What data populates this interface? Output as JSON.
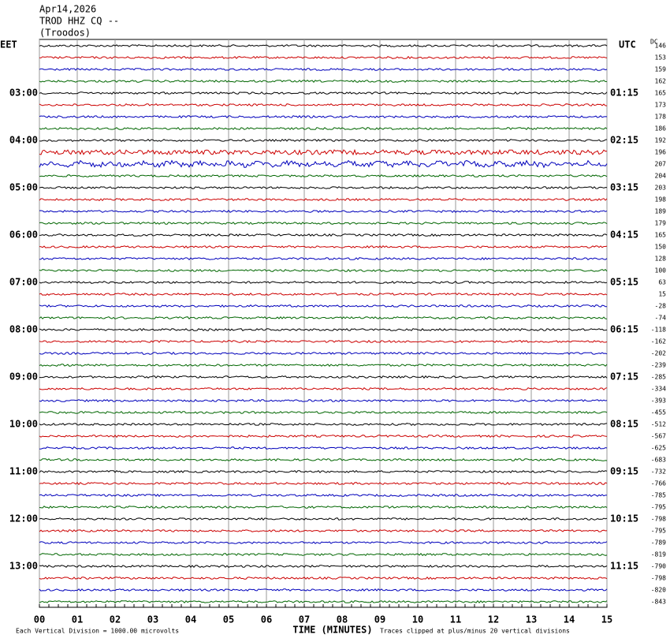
{
  "chart_data": {
    "type": "helicorder",
    "title_lines": [
      "Apr14,2026",
      "TROD HHZ CQ --",
      "(Troodos)"
    ],
    "left_zone": "EET",
    "right_zone": "UTC",
    "dc_header": "DC",
    "x_label": "TIME (MINUTES)",
    "note_left": "Each Vertical Division = 1000.00 microvolts",
    "note_right": "Traces clipped at plus/minus 20 vertical divisions",
    "xlim": [
      0,
      15
    ],
    "xticks": [
      {
        "value": 0,
        "label": "00"
      },
      {
        "value": 1,
        "label": "01"
      },
      {
        "value": 2,
        "label": "02"
      },
      {
        "value": 3,
        "label": "03"
      },
      {
        "value": 4,
        "label": "04"
      },
      {
        "value": 5,
        "label": "05"
      },
      {
        "value": 6,
        "label": "06"
      },
      {
        "value": 7,
        "label": "07"
      },
      {
        "value": 8,
        "label": "08"
      },
      {
        "value": 9,
        "label": "09"
      },
      10,
      11,
      12,
      13,
      14,
      15
    ],
    "trace_colors": [
      "#000000",
      "#cc0000",
      "#0000bb",
      "#006600"
    ],
    "traces": [
      {
        "dc": 146,
        "eet": null,
        "utc": null
      },
      {
        "dc": 153,
        "eet": null,
        "utc": null
      },
      {
        "dc": 159,
        "eet": null,
        "utc": null
      },
      {
        "dc": 162,
        "eet": null,
        "utc": null
      },
      {
        "dc": 165,
        "eet": "03:00",
        "utc": "01:15"
      },
      {
        "dc": 173,
        "eet": null,
        "utc": null
      },
      {
        "dc": 178,
        "eet": null,
        "utc": null
      },
      {
        "dc": 186,
        "eet": null,
        "utc": null
      },
      {
        "dc": 192,
        "eet": "04:00",
        "utc": "02:15"
      },
      {
        "dc": 196,
        "eet": null,
        "utc": null
      },
      {
        "dc": 207,
        "eet": null,
        "utc": null
      },
      {
        "dc": 204,
        "eet": null,
        "utc": null
      },
      {
        "dc": 203,
        "eet": "05:00",
        "utc": "03:15"
      },
      {
        "dc": 198,
        "eet": null,
        "utc": null
      },
      {
        "dc": 189,
        "eet": null,
        "utc": null
      },
      {
        "dc": 179,
        "eet": null,
        "utc": null
      },
      {
        "dc": 165,
        "eet": "06:00",
        "utc": "04:15"
      },
      {
        "dc": 150,
        "eet": null,
        "utc": null
      },
      {
        "dc": 128,
        "eet": null,
        "utc": null
      },
      {
        "dc": 100,
        "eet": null,
        "utc": null
      },
      {
        "dc": 63,
        "eet": "07:00",
        "utc": "05:15"
      },
      {
        "dc": 15,
        "eet": null,
        "utc": null
      },
      {
        "dc": -28,
        "eet": null,
        "utc": null
      },
      {
        "dc": -74,
        "eet": null,
        "utc": null
      },
      {
        "dc": -118,
        "eet": "08:00",
        "utc": "06:15"
      },
      {
        "dc": -162,
        "eet": null,
        "utc": null
      },
      {
        "dc": -202,
        "eet": null,
        "utc": null
      },
      {
        "dc": -239,
        "eet": null,
        "utc": null
      },
      {
        "dc": -285,
        "eet": "09:00",
        "utc": "07:15"
      },
      {
        "dc": -334,
        "eet": null,
        "utc": null
      },
      {
        "dc": -393,
        "eet": null,
        "utc": null
      },
      {
        "dc": -455,
        "eet": null,
        "utc": null
      },
      {
        "dc": -512,
        "eet": "10:00",
        "utc": "08:15"
      },
      {
        "dc": -567,
        "eet": null,
        "utc": null
      },
      {
        "dc": -625,
        "eet": null,
        "utc": null
      },
      {
        "dc": -683,
        "eet": null,
        "utc": null
      },
      {
        "dc": -732,
        "eet": "11:00",
        "utc": "09:15"
      },
      {
        "dc": -766,
        "eet": null,
        "utc": null
      },
      {
        "dc": -785,
        "eet": null,
        "utc": null
      },
      {
        "dc": -795,
        "eet": null,
        "utc": null
      },
      {
        "dc": -798,
        "eet": "12:00",
        "utc": "10:15"
      },
      {
        "dc": -795,
        "eet": null,
        "utc": null
      },
      {
        "dc": -789,
        "eet": null,
        "utc": null
      },
      {
        "dc": -819,
        "eet": null,
        "utc": null
      },
      {
        "dc": -790,
        "eet": "13:00",
        "utc": "11:15"
      },
      {
        "dc": -798,
        "eet": null,
        "utc": null
      },
      {
        "dc": -820,
        "eet": null,
        "utc": null
      },
      {
        "dc": -843,
        "eet": null,
        "utc": null
      }
    ]
  }
}
